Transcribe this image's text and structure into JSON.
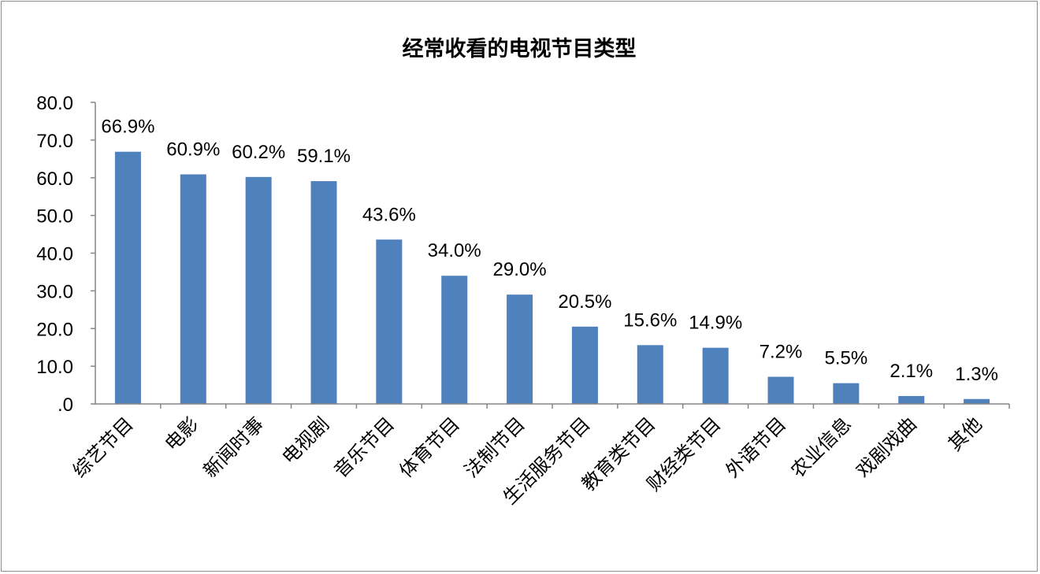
{
  "chart_data": {
    "type": "bar",
    "title": "经常收看的电视节目类型",
    "xlabel": "",
    "ylabel": "",
    "ylim": [
      0,
      80
    ],
    "yticks": [
      ".0",
      "10.0",
      "20.0",
      "30.0",
      "40.0",
      "50.0",
      "60.0",
      "70.0",
      "80.0"
    ],
    "categories": [
      "综艺节目",
      "电影",
      "新闻时事",
      "电视剧",
      "音乐节目",
      "体育节目",
      "法制节目",
      "生活服务节目",
      "教育类节目",
      "财经类节目",
      "外语节目",
      "农业信息",
      "戏剧戏曲",
      "其他"
    ],
    "values": [
      66.9,
      60.9,
      60.2,
      59.1,
      43.6,
      34.0,
      29.0,
      20.5,
      15.6,
      14.9,
      7.2,
      5.5,
      2.1,
      1.3
    ],
    "data_labels": [
      "66.9%",
      "60.9%",
      "60.2%",
      "59.1%",
      "43.6%",
      "34.0%",
      "29.0%",
      "20.5%",
      "15.6%",
      "14.9%",
      "7.2%",
      "5.5%",
      "2.1%",
      "1.3%"
    ],
    "grid": false,
    "legend": "none",
    "colors": {
      "bar": "#4f81bd",
      "axis": "#868686"
    }
  }
}
